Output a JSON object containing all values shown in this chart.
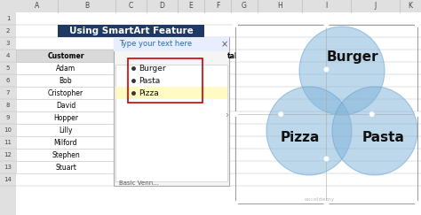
{
  "title": "Using SmartArt Feature",
  "title_bg": "#1F3864",
  "title_color": "#FFFFFF",
  "bg_color": "#FFFFFF",
  "grid_color": "#C8C8C8",
  "customers": [
    "Adam",
    "Bob",
    "Cristopher",
    "David",
    "Hopper",
    "Lilly",
    "Milford",
    "Stephen",
    "Stuart"
  ],
  "col_header": "Customer",
  "col_b_header": "B",
  "col_tal_header": "tal",
  "dialog_title": "Type your text here",
  "dialog_items": [
    "Burger",
    "Pasta",
    "Pizza"
  ],
  "basic_venn_text": "Basic Venn...",
  "watermark": "exceldemy",
  "venn_labels": [
    "Burger",
    "Pizza",
    "Pasta"
  ],
  "venn_color": "#7EB3D8",
  "venn_alpha": 0.5,
  "venn_label_size": 11,
  "excel_col_header_bg": "#D9D9D9",
  "excel_row_header_bg": "#E8E8E8",
  "excel_header_bar": "#E0E0E0",
  "dialog_bg": "#F5F5F5",
  "dialog_title_color": "#1F6DBF",
  "yellow_highlight": "#FFFAAA",
  "red_box_color": "#CC0000",
  "handle_color": "#888888",
  "selection_box_color": "#888888"
}
